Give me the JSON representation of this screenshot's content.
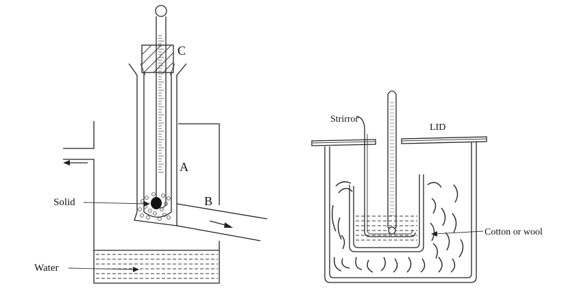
{
  "left_diagram": {
    "labels": {
      "c": "C",
      "a": "A",
      "b": "B",
      "solid": "Solid",
      "water": "Water"
    }
  },
  "right_diagram": {
    "labels": {
      "stirrer": "Strirror",
      "lid": "LID",
      "cotton": "Cotton or wool"
    }
  }
}
